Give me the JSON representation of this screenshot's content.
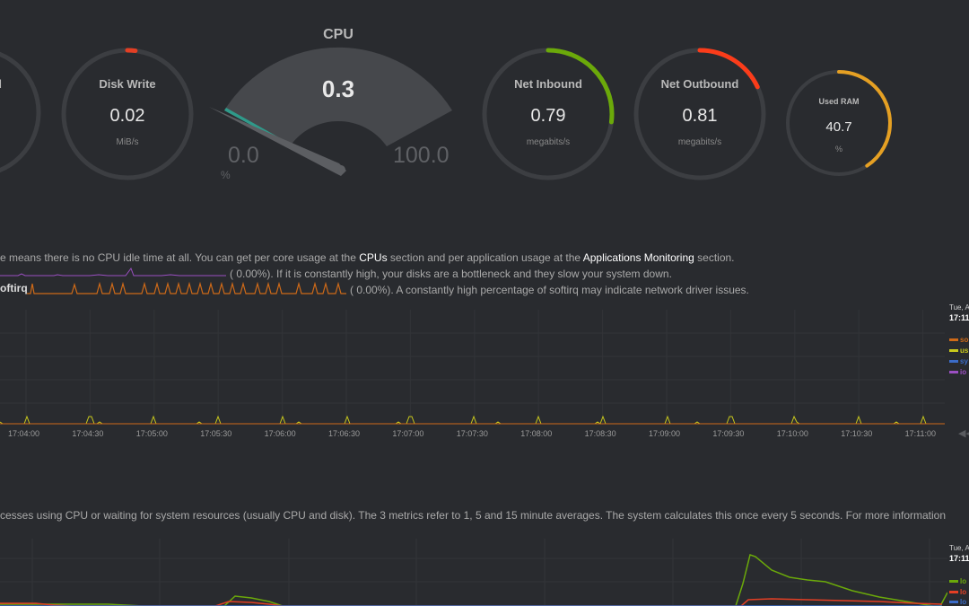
{
  "gauges": {
    "partial_left": {
      "title": "d"
    },
    "disk_write": {
      "title": "Disk Write",
      "value": "0.02",
      "unit": "MiB/s",
      "fraction": 0.02
    },
    "cpu": {
      "title": "CPU",
      "value": "0.3",
      "min": "0.0",
      "max": "100.0",
      "unit": "%",
      "fraction": 0.003
    },
    "net_inbound": {
      "title": "Net Inbound",
      "value": "0.79",
      "unit": "megabits/s",
      "fraction": 0.27
    },
    "net_outbound": {
      "title": "Net Outbound",
      "value": "0.81",
      "unit": "megabits/s",
      "fraction": 0.18
    },
    "used_ram": {
      "title": "Used RAM",
      "value": "40.7",
      "unit": "%",
      "fraction": 0.407
    }
  },
  "colors": {
    "disk_write_arc": "#e33f24",
    "net_inbound_arc": "#6ba90a",
    "net_outbound_arc": "#fb3c1a",
    "used_ram_arc": "#e5a023",
    "gauge_track": "#3c3e42",
    "cpu_track": "#46484c"
  },
  "cpu_section": {
    "line1_a": "e means there is no CPU idle time at all. You can get per core usage at the ",
    "line1_link1": "CPUs",
    "line1_b": " section and per application usage at the ",
    "line1_link2": "Applications Monitoring",
    "line1_c": " section.",
    "line2_value": "(      0.00%).",
    "line2_text": " If it is constantly high, your disks are a bottleneck and they slow your system down.",
    "line3_label": "oftirq",
    "line3_value": "(      0.00%).",
    "line3_text": " A constantly high percentage of softirq may indicate network driver issues.",
    "chart_date": "Tue, A",
    "chart_time": "17:11",
    "legend": [
      {
        "label": "so",
        "color": "#cf6a18"
      },
      {
        "label": "us",
        "color": "#c9c91c"
      },
      {
        "label": "sy",
        "color": "#3b6cc8"
      },
      {
        "label": "io",
        "color": "#9b4fc2"
      }
    ],
    "x_ticks": [
      "17:04:00",
      "17:04:30",
      "17:05:00",
      "17:05:30",
      "17:06:00",
      "17:06:30",
      "17:07:00",
      "17:07:30",
      "17:08:00",
      "17:08:30",
      "17:09:00",
      "17:09:30",
      "17:10:00",
      "17:10:30",
      "17:11:00"
    ],
    "nav_icon": "rewind-icon"
  },
  "load_section": {
    "description": "cesses using CPU or waiting for system resources (usually CPU and disk). The 3 metrics refer to 1, 5 and 15 minute averages. The system calculates this once every 5 seconds. For more information",
    "chart_date": "Tue, A",
    "chart_time": "17:11",
    "legend": [
      {
        "label": "lo",
        "color": "#6ba90a"
      },
      {
        "label": "lo",
        "color": "#e33f24"
      },
      {
        "label": "lo",
        "color": "#3b6cc8"
      }
    ]
  }
}
